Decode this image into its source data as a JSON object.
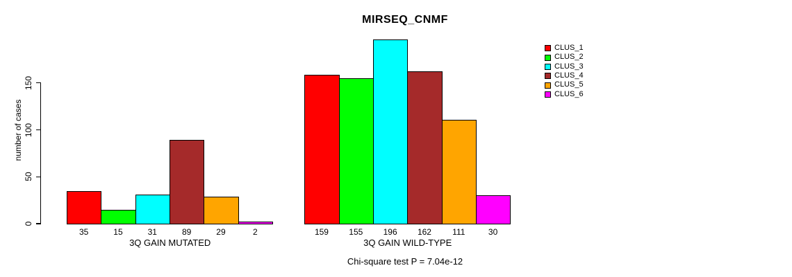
{
  "chart_data": {
    "type": "bar",
    "title": "MIRSEQ_CNMF",
    "ylabel": "number of cases",
    "xlabel": "",
    "y_ticks": [
      0,
      50,
      100,
      150
    ],
    "ylim": [
      0,
      196
    ],
    "grid": false,
    "legend_position": "top-right",
    "series_names": [
      "CLUS_1",
      "CLUS_2",
      "CLUS_3",
      "CLUS_4",
      "CLUS_5",
      "CLUS_6"
    ],
    "series_colors": [
      "#FF0000",
      "#00FF00",
      "#00FFFF",
      "#A52A2A",
      "#FFA500",
      "#FF00FF"
    ],
    "groups": [
      {
        "label": "3Q GAIN MUTATED",
        "values": [
          35,
          15,
          31,
          89,
          29,
          2
        ]
      },
      {
        "label": "3Q GAIN WILD-TYPE",
        "values": [
          159,
          155,
          196,
          162,
          111,
          30
        ]
      }
    ],
    "annotation": "Chi-square test P = 7.04e-12"
  },
  "colors": {
    "background": "#FFFFFF",
    "axis": "#000000",
    "text": "#000000"
  }
}
